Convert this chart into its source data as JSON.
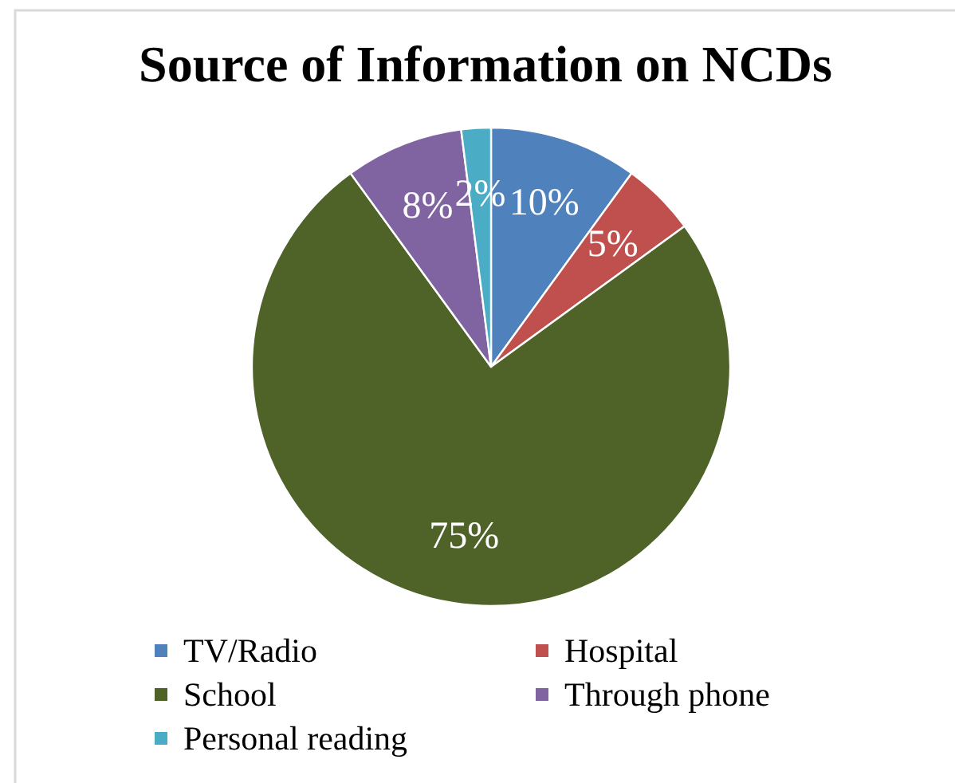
{
  "chart_data": {
    "type": "pie",
    "title": "Source of Information on NCDs",
    "categories": [
      "TV/Radio",
      "Hospital",
      "School",
      "Through phone",
      "Personal reading"
    ],
    "values": [
      10,
      5,
      75,
      8,
      2
    ],
    "colors": [
      "#4f81bd",
      "#c0504d",
      "#4f6228",
      "#8064a2",
      "#4bacc6"
    ],
    "value_labels": [
      "10%",
      "5%",
      "75%",
      "8%",
      "2%"
    ],
    "legend": "bottom"
  }
}
